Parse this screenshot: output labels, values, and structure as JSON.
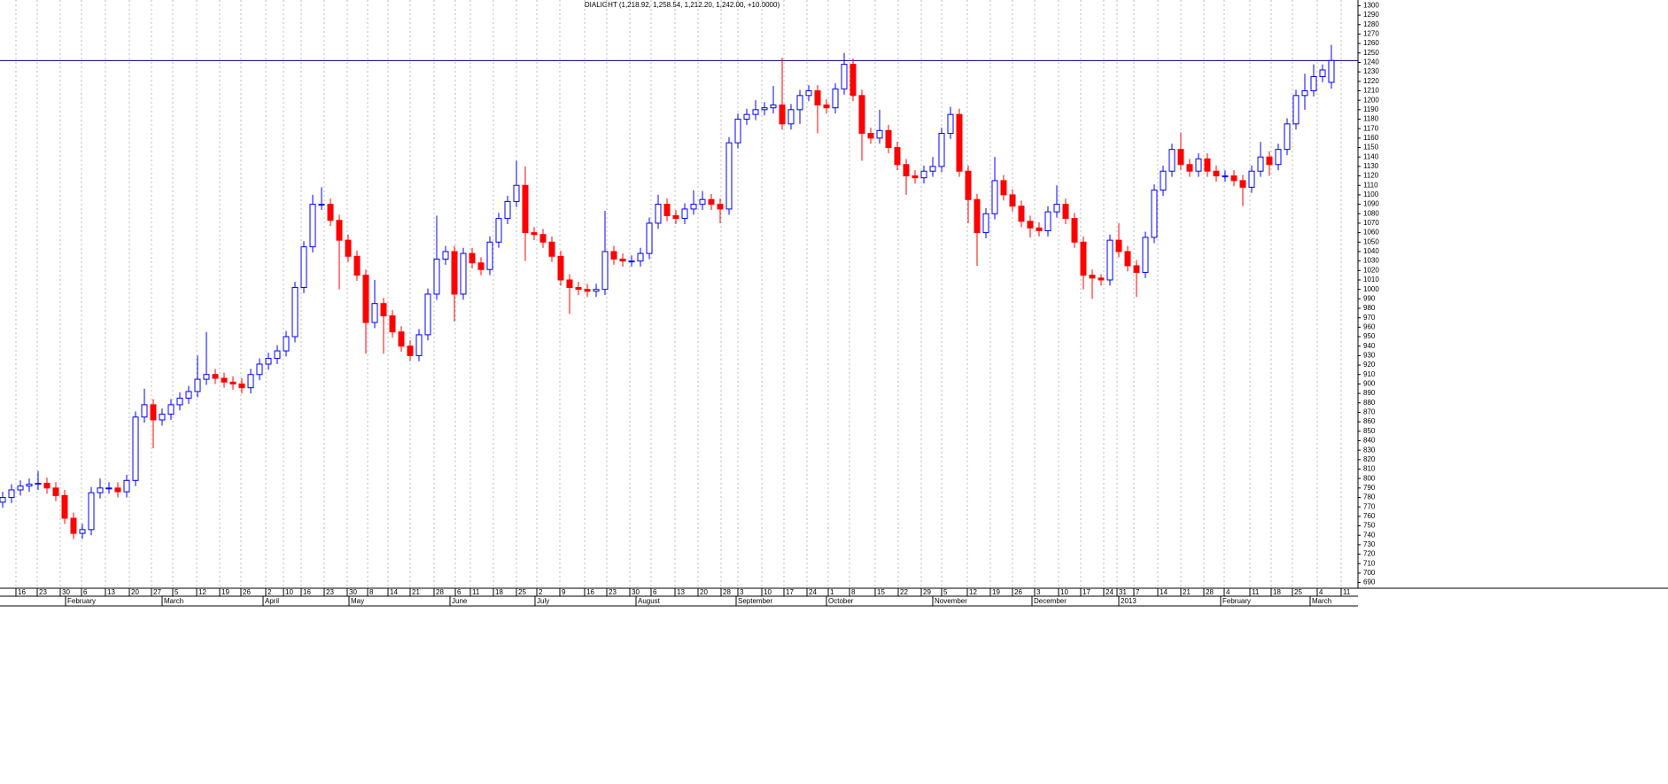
{
  "chart_data": {
    "type": "candlestick",
    "title": "DIALIGHT (1,218.92, 1,258.54, 1,212.20, 1,242.00, +10.0000)",
    "up_color": "#0000ff",
    "down_color": "#ff0000",
    "reference_line": 1242,
    "reference_color": "#00008b",
    "grid": true,
    "ylim": [
      684,
      1306
    ],
    "yticks": [
      690,
      700,
      710,
      720,
      730,
      740,
      750,
      760,
      770,
      780,
      790,
      800,
      810,
      820,
      830,
      840,
      850,
      860,
      870,
      880,
      890,
      900,
      910,
      920,
      930,
      940,
      950,
      960,
      970,
      980,
      990,
      1000,
      1010,
      1020,
      1030,
      1040,
      1050,
      1060,
      1070,
      1080,
      1090,
      1100,
      1110,
      1120,
      1130,
      1140,
      1150,
      1160,
      1170,
      1180,
      1190,
      1200,
      1210,
      1220,
      1230,
      1240,
      1250,
      1260,
      1270,
      1280,
      1290,
      1300
    ],
    "xlim": [
      -0.3,
      153
    ],
    "xticks": [
      {
        "value": 1.5,
        "label": "16"
      },
      {
        "value": 3.9,
        "label": "23"
      },
      {
        "value": 6.5,
        "label": "30"
      },
      {
        "value": 8.9,
        "label": "6"
      },
      {
        "value": 11.6,
        "label": "13"
      },
      {
        "value": 14.3,
        "label": "20"
      },
      {
        "value": 16.8,
        "label": "27"
      },
      {
        "value": 19.2,
        "label": "5"
      },
      {
        "value": 21.9,
        "label": "12"
      },
      {
        "value": 24.5,
        "label": "19"
      },
      {
        "value": 26.9,
        "label": "26"
      },
      {
        "value": 29.7,
        "label": "2"
      },
      {
        "value": 31.7,
        "label": "10"
      },
      {
        "value": 33.7,
        "label": "16"
      },
      {
        "value": 36.3,
        "label": "23"
      },
      {
        "value": 38.9,
        "label": "30"
      },
      {
        "value": 41.2,
        "label": "8"
      },
      {
        "value": 43.5,
        "label": "14"
      },
      {
        "value": 46,
        "label": "21"
      },
      {
        "value": 48.7,
        "label": "28"
      },
      {
        "value": 51.1,
        "label": "6"
      },
      {
        "value": 52.8,
        "label": "11"
      },
      {
        "value": 55.4,
        "label": "18"
      },
      {
        "value": 58,
        "label": "25"
      },
      {
        "value": 60.3,
        "label": "2"
      },
      {
        "value": 62.9,
        "label": "9"
      },
      {
        "value": 65.7,
        "label": "16"
      },
      {
        "value": 68.2,
        "label": "23"
      },
      {
        "value": 70.8,
        "label": "30"
      },
      {
        "value": 73.2,
        "label": "6"
      },
      {
        "value": 75.9,
        "label": "13"
      },
      {
        "value": 78.5,
        "label": "20"
      },
      {
        "value": 81.1,
        "label": "28"
      },
      {
        "value": 83,
        "label": "3"
      },
      {
        "value": 85.7,
        "label": "10"
      },
      {
        "value": 88.2,
        "label": "17"
      },
      {
        "value": 90.8,
        "label": "24"
      },
      {
        "value": 93.2,
        "label": "1"
      },
      {
        "value": 95.6,
        "label": "8"
      },
      {
        "value": 98.5,
        "label": "15"
      },
      {
        "value": 101.1,
        "label": "22"
      },
      {
        "value": 103.7,
        "label": "29"
      },
      {
        "value": 106,
        "label": "5"
      },
      {
        "value": 108.9,
        "label": "12"
      },
      {
        "value": 111.5,
        "label": "19"
      },
      {
        "value": 114,
        "label": "26"
      },
      {
        "value": 116.5,
        "label": "3"
      },
      {
        "value": 119.2,
        "label": "10"
      },
      {
        "value": 121.7,
        "label": "17"
      },
      {
        "value": 124.3,
        "label": "24"
      },
      {
        "value": 125.8,
        "label": "31"
      },
      {
        "value": 127.7,
        "label": "7"
      },
      {
        "value": 130.4,
        "label": "14"
      },
      {
        "value": 133,
        "label": "21"
      },
      {
        "value": 135.6,
        "label": "28"
      },
      {
        "value": 137.9,
        "label": "4"
      },
      {
        "value": 140.8,
        "label": "11"
      },
      {
        "value": 143.2,
        "label": "18"
      },
      {
        "value": 145.6,
        "label": "25"
      },
      {
        "value": 148.4,
        "label": "4"
      },
      {
        "value": 151.1,
        "label": "11"
      }
    ],
    "month_labels": [
      {
        "value": 7.1,
        "label": "February"
      },
      {
        "value": 18,
        "label": "March"
      },
      {
        "value": 29.4,
        "label": "April"
      },
      {
        "value": 39.1,
        "label": "May"
      },
      {
        "value": 50.5,
        "label": "June"
      },
      {
        "value": 60.1,
        "label": "July"
      },
      {
        "value": 71.5,
        "label": "August"
      },
      {
        "value": 82.8,
        "label": "September"
      },
      {
        "value": 93,
        "label": "October"
      },
      {
        "value": 105,
        "label": "November"
      },
      {
        "value": 116.2,
        "label": "December"
      },
      {
        "value": 126,
        "label": "2013"
      },
      {
        "value": 137.5,
        "label": "February"
      },
      {
        "value": 147.6,
        "label": "March"
      }
    ],
    "candles": [
      [
        775,
        786,
        769,
        780
      ],
      [
        780,
        794,
        774,
        788
      ],
      [
        788,
        798,
        782,
        792
      ],
      [
        792,
        800,
        786,
        794
      ],
      [
        794,
        808,
        788,
        795
      ],
      [
        795,
        801,
        784,
        790
      ],
      [
        790,
        796,
        776,
        782
      ],
      [
        782,
        788,
        752,
        758
      ],
      [
        758,
        764,
        736,
        742
      ],
      [
        742,
        752,
        736,
        746
      ],
      [
        746,
        791,
        740,
        785
      ],
      [
        785,
        800,
        779,
        790
      ],
      [
        790,
        796,
        784,
        790
      ],
      [
        790,
        796,
        780,
        786
      ],
      [
        786,
        804,
        780,
        798
      ],
      [
        798,
        871,
        792,
        865
      ],
      [
        865,
        895,
        859,
        878
      ],
      [
        878,
        884,
        832,
        862
      ],
      [
        862,
        874,
        856,
        868
      ],
      [
        868,
        884,
        862,
        878
      ],
      [
        878,
        891,
        872,
        885
      ],
      [
        885,
        898,
        879,
        892
      ],
      [
        892,
        930,
        886,
        905
      ],
      [
        905,
        955,
        899,
        910
      ],
      [
        910,
        916,
        900,
        906
      ],
      [
        906,
        912,
        896,
        902
      ],
      [
        902,
        908,
        894,
        900
      ],
      [
        900,
        906,
        890,
        896
      ],
      [
        896,
        916,
        890,
        910
      ],
      [
        910,
        927,
        904,
        921
      ],
      [
        921,
        933,
        915,
        927
      ],
      [
        927,
        941,
        921,
        935
      ],
      [
        935,
        956,
        929,
        950
      ],
      [
        950,
        1008,
        944,
        1002
      ],
      [
        1002,
        1051,
        996,
        1045
      ],
      [
        1045,
        1100,
        1039,
        1090
      ],
      [
        1090,
        1108,
        1084,
        1090
      ],
      [
        1090,
        1096,
        1067,
        1073
      ],
      [
        1073,
        1079,
        1000,
        1052
      ],
      [
        1052,
        1058,
        1029,
        1035
      ],
      [
        1035,
        1041,
        1009,
        1015
      ],
      [
        1015,
        1021,
        932,
        965
      ],
      [
        965,
        1010,
        959,
        985
      ],
      [
        985,
        991,
        932,
        972
      ],
      [
        972,
        978,
        949,
        955
      ],
      [
        955,
        961,
        934,
        940
      ],
      [
        940,
        946,
        924,
        930
      ],
      [
        930,
        958,
        924,
        952
      ],
      [
        952,
        1001,
        946,
        995
      ],
      [
        995,
        1078,
        989,
        1032
      ],
      [
        1032,
        1046,
        1026,
        1040
      ],
      [
        1040,
        1046,
        966,
        995
      ],
      [
        995,
        1044,
        989,
        1038
      ],
      [
        1038,
        1044,
        1022,
        1028
      ],
      [
        1028,
        1034,
        1015,
        1021
      ],
      [
        1021,
        1056,
        1015,
        1050
      ],
      [
        1050,
        1081,
        1044,
        1075
      ],
      [
        1075,
        1099,
        1069,
        1093
      ],
      [
        1093,
        1136,
        1087,
        1110
      ],
      [
        1110,
        1130,
        1030,
        1060
      ],
      [
        1060,
        1066,
        1052,
        1058
      ],
      [
        1058,
        1064,
        1044,
        1050
      ],
      [
        1050,
        1056,
        1029,
        1035
      ],
      [
        1035,
        1041,
        1004,
        1010
      ],
      [
        1010,
        1016,
        974,
        1002
      ],
      [
        1002,
        1008,
        994,
        1000
      ],
      [
        1000,
        1006,
        992,
        998
      ],
      [
        998,
        1006,
        992,
        1000
      ],
      [
        1000,
        1083,
        994,
        1040
      ],
      [
        1040,
        1046,
        1026,
        1032
      ],
      [
        1032,
        1038,
        1024,
        1030
      ],
      [
        1030,
        1036,
        1024,
        1030
      ],
      [
        1030,
        1044,
        1024,
        1038
      ],
      [
        1038,
        1076,
        1032,
        1070
      ],
      [
        1070,
        1100,
        1064,
        1090
      ],
      [
        1090,
        1096,
        1072,
        1078
      ],
      [
        1078,
        1084,
        1069,
        1075
      ],
      [
        1075,
        1091,
        1069,
        1085
      ],
      [
        1085,
        1105,
        1079,
        1090
      ],
      [
        1090,
        1104,
        1084,
        1095
      ],
      [
        1095,
        1101,
        1084,
        1090
      ],
      [
        1090,
        1096,
        1070,
        1085
      ],
      [
        1085,
        1161,
        1079,
        1155
      ],
      [
        1155,
        1186,
        1149,
        1180
      ],
      [
        1180,
        1191,
        1174,
        1185
      ],
      [
        1185,
        1200,
        1179,
        1190
      ],
      [
        1190,
        1198,
        1184,
        1192
      ],
      [
        1192,
        1215,
        1186,
        1195
      ],
      [
        1195,
        1245,
        1169,
        1175
      ],
      [
        1175,
        1196,
        1169,
        1190
      ],
      [
        1190,
        1211,
        1175,
        1205
      ],
      [
        1205,
        1216,
        1199,
        1210
      ],
      [
        1210,
        1216,
        1165,
        1195
      ],
      [
        1195,
        1201,
        1186,
        1192
      ],
      [
        1192,
        1218,
        1186,
        1212
      ],
      [
        1212,
        1250,
        1206,
        1238
      ],
      [
        1238,
        1244,
        1199,
        1205
      ],
      [
        1205,
        1211,
        1136,
        1165
      ],
      [
        1165,
        1171,
        1154,
        1160
      ],
      [
        1160,
        1190,
        1154,
        1168
      ],
      [
        1168,
        1174,
        1144,
        1150
      ],
      [
        1150,
        1156,
        1126,
        1132
      ],
      [
        1132,
        1138,
        1100,
        1120
      ],
      [
        1120,
        1126,
        1112,
        1118
      ],
      [
        1118,
        1131,
        1112,
        1125
      ],
      [
        1125,
        1140,
        1119,
        1130
      ],
      [
        1130,
        1171,
        1124,
        1165
      ],
      [
        1165,
        1193,
        1159,
        1185
      ],
      [
        1185,
        1191,
        1119,
        1125
      ],
      [
        1125,
        1131,
        1070,
        1095
      ],
      [
        1095,
        1101,
        1025,
        1060
      ],
      [
        1060,
        1086,
        1054,
        1080
      ],
      [
        1080,
        1140,
        1074,
        1115
      ],
      [
        1115,
        1121,
        1094,
        1100
      ],
      [
        1100,
        1106,
        1082,
        1088
      ],
      [
        1088,
        1094,
        1066,
        1072
      ],
      [
        1072,
        1078,
        1055,
        1065
      ],
      [
        1065,
        1071,
        1056,
        1062
      ],
      [
        1062,
        1088,
        1056,
        1082
      ],
      [
        1082,
        1110,
        1076,
        1090
      ],
      [
        1090,
        1096,
        1069,
        1075
      ],
      [
        1075,
        1081,
        1044,
        1050
      ],
      [
        1050,
        1056,
        1000,
        1015
      ],
      [
        1015,
        1021,
        990,
        1012
      ],
      [
        1012,
        1016,
        1004,
        1010
      ],
      [
        1010,
        1058,
        1004,
        1052
      ],
      [
        1052,
        1070,
        1034,
        1040
      ],
      [
        1040,
        1046,
        1019,
        1025
      ],
      [
        1025,
        1031,
        992,
        1018
      ],
      [
        1018,
        1061,
        1012,
        1055
      ],
      [
        1055,
        1111,
        1049,
        1105
      ],
      [
        1105,
        1131,
        1099,
        1125
      ],
      [
        1125,
        1154,
        1119,
        1148
      ],
      [
        1148,
        1166,
        1126,
        1132
      ],
      [
        1132,
        1138,
        1119,
        1125
      ],
      [
        1125,
        1144,
        1119,
        1138
      ],
      [
        1138,
        1144,
        1119,
        1125
      ],
      [
        1125,
        1131,
        1114,
        1120
      ],
      [
        1120,
        1126,
        1114,
        1120
      ],
      [
        1120,
        1126,
        1109,
        1115
      ],
      [
        1115,
        1121,
        1088,
        1108
      ],
      [
        1108,
        1131,
        1102,
        1125
      ],
      [
        1125,
        1156,
        1119,
        1140
      ],
      [
        1140,
        1146,
        1120,
        1132
      ],
      [
        1132,
        1154,
        1126,
        1148
      ],
      [
        1148,
        1181,
        1142,
        1175
      ],
      [
        1175,
        1211,
        1169,
        1205
      ],
      [
        1205,
        1228,
        1190,
        1210
      ],
      [
        1210,
        1238,
        1204,
        1225
      ],
      [
        1225,
        1238,
        1219,
        1232
      ],
      [
        1218.92,
        1258.54,
        1212.2,
        1242
      ]
    ]
  }
}
